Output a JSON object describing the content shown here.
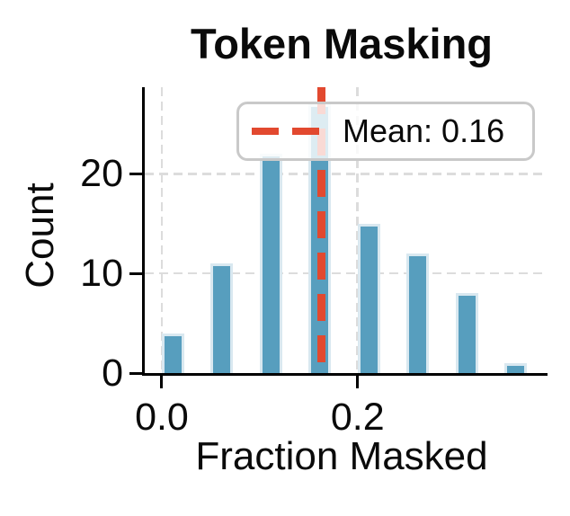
{
  "chart_data": {
    "type": "bar",
    "chart_kind": "histogram",
    "title": "Token Masking",
    "xlabel": "Fraction Masked",
    "ylabel": "Count",
    "bin_edges": [
      0.0,
      0.05,
      0.1,
      0.15,
      0.2,
      0.25,
      0.3,
      0.35,
      0.4
    ],
    "counts": [
      4,
      11,
      22,
      27,
      15,
      12,
      8,
      1
    ],
    "total_count": 100,
    "mean": 0.16,
    "legend": {
      "label": "Mean: 0.16",
      "position": "upper center"
    },
    "xticks": [
      0.0,
      0.2
    ],
    "xtick_labels": [
      "0.0",
      "0.2"
    ],
    "yticks": [
      0,
      10,
      20
    ],
    "ytick_labels": [
      "0",
      "10",
      "20"
    ],
    "xlim": [
      -0.0174,
      0.394
    ],
    "ylim": [
      0,
      28.7
    ],
    "grid": {
      "dashed": true,
      "color": "#dcdcdc"
    },
    "colors": {
      "bar_fill": "#579ebe",
      "bar_edge": "#d9e8f0",
      "mean_line": "#e2492f",
      "axis": "#000000",
      "text": "#0a0a0a",
      "legend_border": "#c9c9c9",
      "legend_bg": "rgba(255,255,255,0.8)"
    }
  }
}
